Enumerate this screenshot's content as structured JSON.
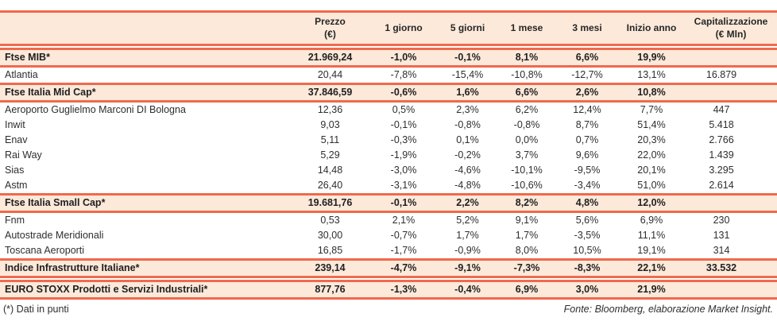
{
  "table": {
    "columns": [
      "",
      "Prezzo\n(€)",
      "1 giorno",
      "5 giorni",
      "1 mese",
      "3 mesi",
      "Inizio anno",
      "Capitalizzazione\n(€ Mln)"
    ],
    "rows": [
      {
        "name": "Ftse MIB*",
        "section": true,
        "spacer_before": false,
        "values": [
          "21.969,24",
          "-1,0%",
          "-0,1%",
          "8,1%",
          "6,6%",
          "19,9%",
          ""
        ]
      },
      {
        "name": "Atlantia",
        "section": false,
        "spacer_before": false,
        "values": [
          "20,44",
          "-7,8%",
          "-15,4%",
          "-10,8%",
          "-12,7%",
          "13,1%",
          "16.879"
        ]
      },
      {
        "name": "Ftse Italia Mid Cap*",
        "section": true,
        "spacer_before": false,
        "values": [
          "37.846,59",
          "-0,6%",
          "1,6%",
          "6,6%",
          "2,6%",
          "10,8%",
          ""
        ]
      },
      {
        "name": "Aeroporto Guglielmo Marconi DI Bologna",
        "section": false,
        "spacer_before": false,
        "values": [
          "12,36",
          "0,5%",
          "2,3%",
          "6,2%",
          "12,4%",
          "7,7%",
          "447"
        ]
      },
      {
        "name": "Inwit",
        "section": false,
        "spacer_before": false,
        "values": [
          "9,03",
          "-0,1%",
          "-0,8%",
          "-0,8%",
          "8,7%",
          "51,4%",
          "5.418"
        ]
      },
      {
        "name": "Enav",
        "section": false,
        "spacer_before": false,
        "values": [
          "5,11",
          "-0,3%",
          "0,1%",
          "0,0%",
          "0,7%",
          "20,3%",
          "2.766"
        ]
      },
      {
        "name": "Rai Way",
        "section": false,
        "spacer_before": false,
        "values": [
          "5,29",
          "-1,9%",
          "-0,2%",
          "3,7%",
          "9,6%",
          "22,0%",
          "1.439"
        ]
      },
      {
        "name": "Sias",
        "section": false,
        "spacer_before": false,
        "values": [
          "14,48",
          "-3,0%",
          "-4,6%",
          "-10,1%",
          "-9,5%",
          "20,1%",
          "3.295"
        ]
      },
      {
        "name": "Astm",
        "section": false,
        "spacer_before": false,
        "values": [
          "26,40",
          "-3,1%",
          "-4,8%",
          "-10,6%",
          "-3,4%",
          "51,0%",
          "2.614"
        ]
      },
      {
        "name": "Ftse Italia Small Cap*",
        "section": true,
        "spacer_before": false,
        "values": [
          "19.681,76",
          "-0,1%",
          "2,2%",
          "8,2%",
          "4,8%",
          "12,0%",
          ""
        ]
      },
      {
        "name": "Fnm",
        "section": false,
        "spacer_before": false,
        "values": [
          "0,53",
          "2,1%",
          "5,2%",
          "9,1%",
          "5,6%",
          "6,9%",
          "230"
        ]
      },
      {
        "name": "Autostrade Meridionali",
        "section": false,
        "spacer_before": false,
        "values": [
          "30,00",
          "-0,7%",
          "1,7%",
          "1,7%",
          "-3,5%",
          "11,1%",
          "131"
        ]
      },
      {
        "name": "Toscana Aeroporti",
        "section": false,
        "spacer_before": false,
        "values": [
          "16,85",
          "-1,7%",
          "-0,9%",
          "8,0%",
          "10,5%",
          "19,1%",
          "314"
        ]
      },
      {
        "name": "Indice Infrastrutture Italiane*",
        "section": true,
        "spacer_before": false,
        "values": [
          "239,14",
          "-4,7%",
          "-9,1%",
          "-7,3%",
          "-8,3%",
          "22,1%",
          "33.532"
        ]
      },
      {
        "name": "EURO STOXX Prodotti e Servizi Industriali*",
        "section": true,
        "spacer_before": true,
        "values": [
          "877,76",
          "-1,3%",
          "-0,4%",
          "6,9%",
          "3,0%",
          "21,9%",
          ""
        ]
      }
    ]
  },
  "footer": {
    "note": "(*) Dati in punti",
    "source": "Fonte: Bloomberg, elaborazione Market Insight."
  },
  "colors": {
    "accent_line": "#ef6a4d",
    "highlight_fill": "#fce9da",
    "text": "#2e2e2e"
  }
}
